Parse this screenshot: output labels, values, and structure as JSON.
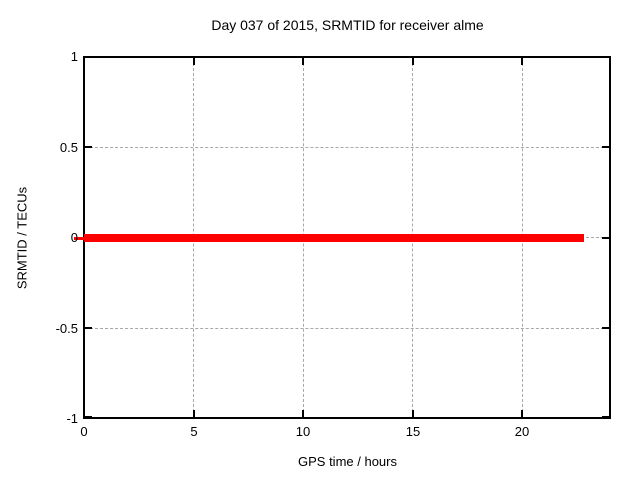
{
  "chart_data": {
    "type": "line",
    "title": "Day 037 of 2015, SRMTID for receiver alme",
    "xlabel": "GPS time / hours",
    "ylabel": "SRMTID / TECUs",
    "xlim": [
      0,
      24
    ],
    "ylim": [
      -1,
      1
    ],
    "xticks": [
      0,
      5,
      10,
      15,
      20
    ],
    "yticks": [
      1,
      0.5,
      0,
      -0.5,
      -1
    ],
    "xticklabels": [
      "0",
      "5",
      "10",
      "15",
      "20"
    ],
    "yticklabels": [
      "1",
      "0.5",
      "0",
      "-0.5",
      "-1"
    ],
    "grid": true,
    "legend": "none",
    "series": [
      {
        "name": "SRMTID",
        "color": "#ff0000",
        "x": [
          0,
          22.8
        ],
        "y": [
          0,
          0
        ]
      }
    ]
  },
  "colors": {
    "line": "#ff0000",
    "grid": "#a8a8a8",
    "axis": "#000000",
    "text": "#000000",
    "background": "#ffffff"
  }
}
